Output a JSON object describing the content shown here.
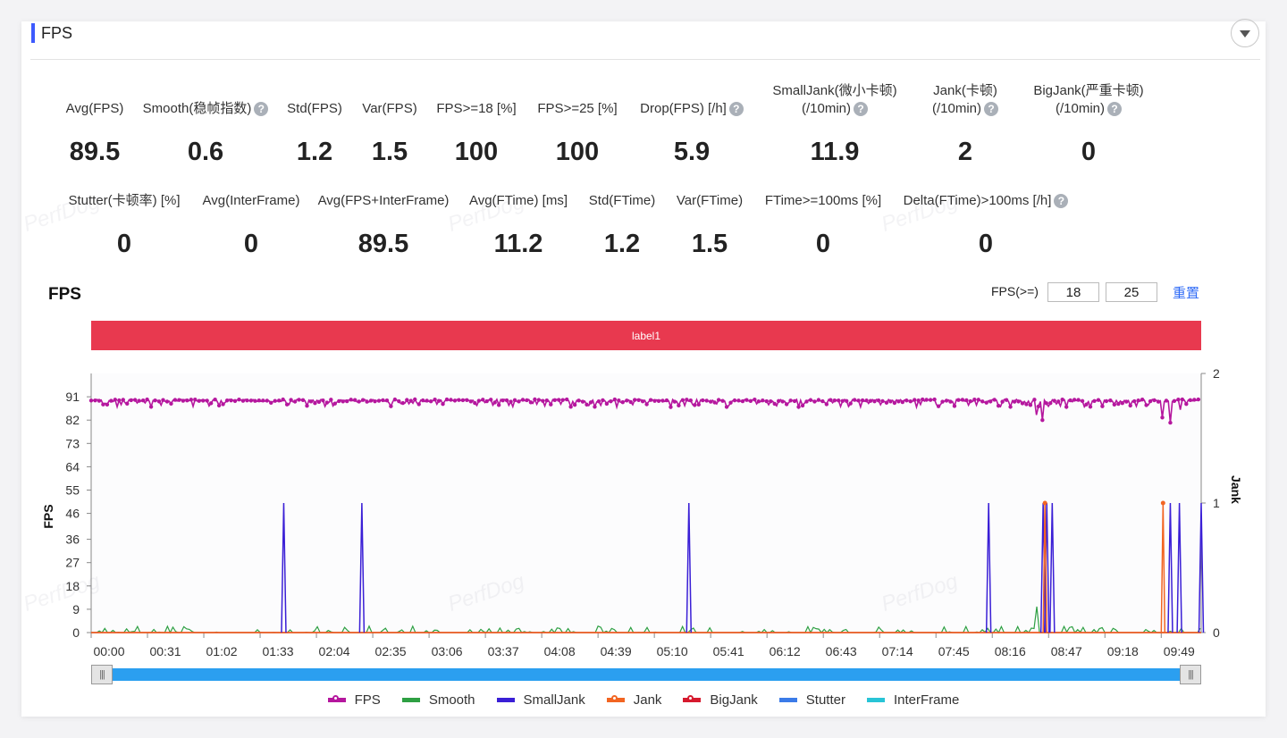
{
  "header": {
    "title": "FPS"
  },
  "metrics_row1": [
    {
      "label": "Avg(FPS)",
      "value": "89.5",
      "help": false
    },
    {
      "label": "Smooth(稳帧指数)",
      "value": "0.6",
      "help": true
    },
    {
      "label": "Std(FPS)",
      "value": "1.2",
      "help": false
    },
    {
      "label": "Var(FPS)",
      "value": "1.5",
      "help": false
    },
    {
      "label": "FPS>=18 [%]",
      "value": "100",
      "help": false
    },
    {
      "label": "FPS>=25 [%]",
      "value": "100",
      "help": false
    },
    {
      "label": "Drop(FPS) [/h]",
      "value": "5.9",
      "help": true
    },
    {
      "label": "SmallJank(微小卡顿)",
      "label2": "(/10min)",
      "value": "11.9",
      "help": true
    },
    {
      "label": "Jank(卡顿)",
      "label2": "(/10min)",
      "value": "2",
      "help": true
    },
    {
      "label": "BigJank(严重卡顿)",
      "label2": "(/10min)",
      "value": "0",
      "help": true
    }
  ],
  "metrics_row2": [
    {
      "label": "Stutter(卡顿率) [%]",
      "value": "0",
      "help": false
    },
    {
      "label": "Avg(InterFrame)",
      "value": "0",
      "help": false
    },
    {
      "label": "Avg(FPS+InterFrame)",
      "value": "89.5",
      "help": false
    },
    {
      "label": "Avg(FTime) [ms]",
      "value": "11.2",
      "help": false
    },
    {
      "label": "Std(FTime)",
      "value": "1.2",
      "help": false
    },
    {
      "label": "Var(FTime)",
      "value": "1.5",
      "help": false
    },
    {
      "label": "FTime>=100ms [%]",
      "value": "0",
      "help": false
    },
    {
      "label": "Delta(FTime)>100ms [/h]",
      "value": "0",
      "help": true
    }
  ],
  "watermark": "PerfDog",
  "chart_section": {
    "title": "FPS",
    "threshold_label": "FPS(>=)",
    "threshold1": "18",
    "threshold2": "25",
    "reset_label": "重置",
    "label_bar": "label1"
  },
  "colors": {
    "FPS": "#b5179e",
    "Smooth": "#2ea043",
    "SmallJank": "#3a1fd6",
    "Jank": "#f26522",
    "BigJank": "#d61a2e",
    "Stutter": "#3b7be8",
    "InterFrame": "#28c4d6",
    "label_bar": "#e8394f",
    "slider": "#2b9ff0"
  },
  "chart_data": {
    "type": "line",
    "x_ticks": [
      "00:00",
      "00:31",
      "01:02",
      "01:33",
      "02:04",
      "02:35",
      "03:06",
      "03:37",
      "04:08",
      "04:39",
      "05:10",
      "05:41",
      "06:12",
      "06:43",
      "07:14",
      "07:45",
      "08:16",
      "08:47",
      "09:18",
      "09:49"
    ],
    "x_range_seconds": [
      0,
      611
    ],
    "ylabel": "FPS",
    "y2label": "Jank",
    "y_ticks": [
      0,
      9,
      18,
      27,
      36,
      46,
      55,
      64,
      73,
      82,
      91
    ],
    "y_range": [
      0,
      100
    ],
    "y2_ticks": [
      0,
      1,
      2
    ],
    "y2_range": [
      0,
      2
    ],
    "series": [
      {
        "name": "FPS",
        "axis": "left",
        "baseline": 90,
        "typical_min": 87,
        "dips": [
          {
            "t": 105,
            "v": 86
          },
          {
            "t": 520,
            "v": 84
          },
          {
            "t": 522,
            "v": 75
          },
          {
            "t": 524,
            "v": 82
          },
          {
            "t": 590,
            "v": 83
          },
          {
            "t": 594,
            "v": 81
          },
          {
            "t": 600,
            "v": 86
          }
        ]
      },
      {
        "name": "Smooth",
        "axis": "right",
        "typical_max": 0.05,
        "peaks": [
          {
            "t": 106,
            "v": 0.1
          },
          {
            "t": 521,
            "v": 0.2
          },
          {
            "t": 601,
            "v": 0.15
          }
        ]
      },
      {
        "name": "SmallJank",
        "axis": "right",
        "events": [
          106,
          149,
          329,
          494,
          524,
          526,
          529,
          594,
          599,
          611
        ]
      },
      {
        "name": "Jank",
        "axis": "right",
        "events": [
          525,
          590
        ]
      },
      {
        "name": "BigJank",
        "axis": "right",
        "events": []
      },
      {
        "name": "Stutter",
        "axis": "right",
        "events": []
      },
      {
        "name": "InterFrame",
        "axis": "right",
        "events": []
      }
    ]
  },
  "legend": [
    "FPS",
    "Smooth",
    "SmallJank",
    "Jank",
    "BigJank",
    "Stutter",
    "InterFrame"
  ],
  "slider_grip": "|||"
}
